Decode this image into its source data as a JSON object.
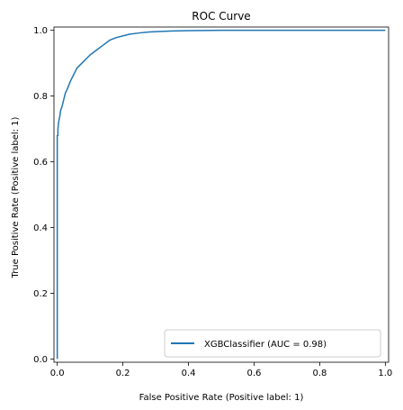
{
  "chart_data": {
    "type": "line",
    "title": "ROC Curve",
    "xlabel": "False Positive Rate (Positive label: 1)",
    "ylabel": "True Positive Rate (Positive label: 1)",
    "xlim": [
      -0.01,
      1.01
    ],
    "ylim": [
      -0.01,
      1.01
    ],
    "grid": false,
    "legend_position": "lower-right",
    "xticks": [
      "0.0",
      "0.2",
      "0.4",
      "0.6",
      "0.8",
      "1.0"
    ],
    "yticks": [
      "0.0",
      "0.2",
      "0.4",
      "0.6",
      "0.8",
      "1.0"
    ],
    "series": [
      {
        "name": "XGBClassifier (AUC = 0.98)",
        "color": "#1f77b4",
        "x": [
          0.0,
          0.0,
          0.002,
          0.002,
          0.004,
          0.006,
          0.008,
          0.01,
          0.015,
          0.02,
          0.025,
          0.03,
          0.04,
          0.05,
          0.06,
          0.07,
          0.08,
          0.09,
          0.1,
          0.12,
          0.14,
          0.16,
          0.18,
          0.2,
          0.22,
          0.25,
          0.28,
          0.3,
          0.35,
          0.4,
          0.5,
          0.6,
          0.7,
          0.8,
          0.9,
          1.0
        ],
        "y": [
          0.0,
          0.68,
          0.68,
          0.7,
          0.72,
          0.73,
          0.74,
          0.755,
          0.77,
          0.79,
          0.81,
          0.82,
          0.845,
          0.865,
          0.885,
          0.895,
          0.905,
          0.915,
          0.925,
          0.94,
          0.955,
          0.97,
          0.978,
          0.983,
          0.988,
          0.992,
          0.995,
          0.996,
          0.998,
          0.999,
          1.0,
          1.0,
          1.0,
          1.0,
          1.0,
          1.0
        ]
      }
    ]
  }
}
